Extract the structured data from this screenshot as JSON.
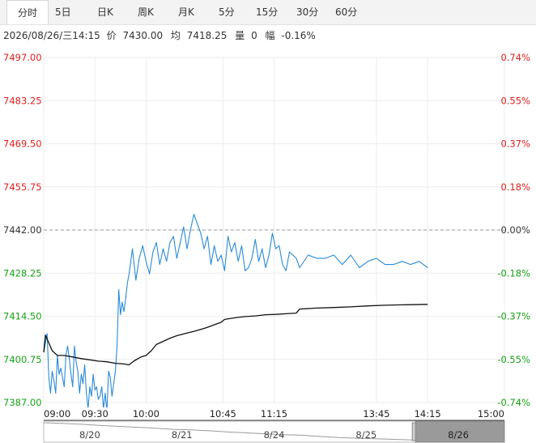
{
  "tabs": [
    {
      "label": "分时",
      "active": true
    },
    {
      "label": "5日"
    },
    {
      "label": "日K"
    },
    {
      "label": "周K"
    },
    {
      "label": "月K"
    },
    {
      "label": "5分"
    },
    {
      "label": "15分"
    },
    {
      "label": "30分"
    },
    {
      "label": "60分"
    }
  ],
  "info": {
    "datetime": "2026/08/26/三14:15",
    "price_label": "价",
    "price": "7430.00",
    "avg_label": "均",
    "avg": "7418.25",
    "vol_label": "量",
    "vol": "0",
    "chg_label": "幅",
    "chg": "-0.16%"
  },
  "colors": {
    "up": "#e02020",
    "down": "#16a316",
    "price_line": "#2a8ad6",
    "avg_line": "#111111",
    "base_line": "#999999"
  },
  "chart_data": {
    "type": "line",
    "x_ticks": [
      "09:00",
      "09:30",
      "10:00",
      "10:45",
      "11:15",
      "13:45",
      "14:15",
      "15:00"
    ],
    "y_ticks_left": [
      "7497.00",
      "7483.25",
      "7469.50",
      "7455.75",
      "7442.00",
      "7428.25",
      "7414.50",
      "7400.75",
      "7387.00"
    ],
    "y_ticks_right": [
      "0.74%",
      "0.55%",
      "0.37%",
      "0.18%",
      "0.00%",
      "-0.18%",
      "-0.37%",
      "-0.55%",
      "-0.74%"
    ],
    "ylim": [
      7387.0,
      7497.0
    ],
    "base_price": 7442.0,
    "grid": true,
    "series": [
      {
        "x": [
          "09:00",
          "09:02",
          "09:03",
          "09:04",
          "09:05",
          "09:06",
          "09:07",
          "09:08",
          "09:09",
          "09:10",
          "09:11",
          "09:12",
          "09:13",
          "09:14",
          "09:15",
          "09:16",
          "09:17",
          "09:18",
          "09:19",
          "09:20",
          "09:21",
          "09:22",
          "09:23",
          "09:24",
          "09:25",
          "09:26",
          "09:27",
          "09:28",
          "09:29",
          "09:30",
          "09:31",
          "09:32",
          "09:33",
          "09:34",
          "09:35",
          "09:36",
          "09:37",
          "09:38",
          "09:39",
          "09:40",
          "09:41",
          "09:42",
          "09:43",
          "09:44",
          "09:45",
          "09:46",
          "09:47",
          "09:48",
          "09:49",
          "09:50",
          "09:52",
          "09:54",
          "09:56",
          "09:58",
          "10:00",
          "10:02",
          "10:04",
          "10:06",
          "10:08",
          "10:10",
          "10:12",
          "10:14",
          "10:16",
          "10:18",
          "10:20",
          "10:22",
          "10:24",
          "10:26",
          "10:28",
          "10:30",
          "10:32",
          "10:34",
          "10:36",
          "10:38",
          "10:40",
          "10:42",
          "10:44",
          "10:46",
          "10:48",
          "10:50",
          "10:52",
          "10:54",
          "10:56",
          "10:58",
          "11:00",
          "11:02",
          "11:04",
          "11:06",
          "11:08",
          "11:10",
          "11:12",
          "11:14",
          "11:16",
          "11:18",
          "11:20",
          "11:22",
          "11:24",
          "11:26",
          "11:28",
          "11:30",
          "13:05",
          "13:10",
          "13:15",
          "13:20",
          "13:25",
          "13:30",
          "13:35",
          "13:40",
          "13:45",
          "13:50",
          "13:55",
          "14:00",
          "14:05",
          "14:10",
          "14:15"
        ],
        "values": [
          7403,
          7409,
          7395,
          7390,
          7397,
          7394,
          7390,
          7402,
          7396,
          7398,
          7395,
          7392,
          7402,
          7405,
          7401,
          7396,
          7392,
          7405,
          7400,
          7397,
          7390,
          7396,
          7393,
          7399,
          7390,
          7385,
          7392,
          7389,
          7396,
          7391,
          7392,
          7388,
          7389,
          7392,
          7385,
          7390,
          7384,
          7397,
          7395,
          7389,
          7393,
          7397,
          7405,
          7423,
          7415,
          7419,
          7416,
          7420,
          7425,
          7428,
          7436,
          7426,
          7433,
          7437,
          7432,
          7428,
          7435,
          7438,
          7431,
          7436,
          7432,
          7438,
          7440,
          7433,
          7438,
          7443,
          7436,
          7442,
          7447,
          7444,
          7441,
          7436,
          7440,
          7431,
          7437,
          7432,
          7434,
          7429,
          7440,
          7435,
          7438,
          7432,
          7437,
          7429,
          7430,
          7433,
          7439,
          7432,
          7436,
          7430,
          7434,
          7441,
          7436,
          7437,
          7431,
          7429,
          7435,
          7434,
          7433,
          7430,
          7434,
          7433,
          7433,
          7434,
          7431,
          7434,
          7430,
          7432,
          7433,
          7431,
          7431,
          7432,
          7431,
          7432,
          7430
        ],
        "color": "#2a8ad6"
      },
      {
        "x": [
          "09:00",
          "09:01",
          "09:03",
          "09:05",
          "09:08",
          "09:12",
          "09:17",
          "09:22",
          "09:27",
          "09:32",
          "09:37",
          "09:42",
          "09:47",
          "09:50",
          "09:53",
          "09:57",
          "10:00",
          "10:03",
          "10:06",
          "10:10",
          "10:14",
          "10:18",
          "10:23",
          "10:28",
          "10:32",
          "10:36",
          "10:40",
          "10:44",
          "10:46",
          "10:52",
          "10:58",
          "11:04",
          "11:10",
          "11:16",
          "11:22",
          "11:28",
          "13:00",
          "13:10",
          "13:20",
          "13:30",
          "13:40",
          "13:50",
          "14:00",
          "14:15"
        ],
        "values": [
          7403.0,
          7408.5,
          7406.0,
          7403.5,
          7402.0,
          7402.0,
          7401.5,
          7401.0,
          7400.6,
          7400.2,
          7400.0,
          7399.5,
          7399.3,
          7399.0,
          7400.3,
          7401.5,
          7402.0,
          7403.5,
          7405.5,
          7406.5,
          7407.5,
          7408.3,
          7409.0,
          7409.7,
          7410.3,
          7411.0,
          7411.8,
          7412.6,
          7413.5,
          7414.0,
          7414.4,
          7414.6,
          7415.0,
          7415.1,
          7415.3,
          7415.5,
          7416.8,
          7417.1,
          7417.3,
          7417.5,
          7417.8,
          7418.0,
          7418.15,
          7418.3
        ],
        "color": "#111111"
      }
    ],
    "navigator_dates": [
      "8/20",
      "8/21",
      "8/24",
      "8/25",
      "8/26"
    ]
  }
}
